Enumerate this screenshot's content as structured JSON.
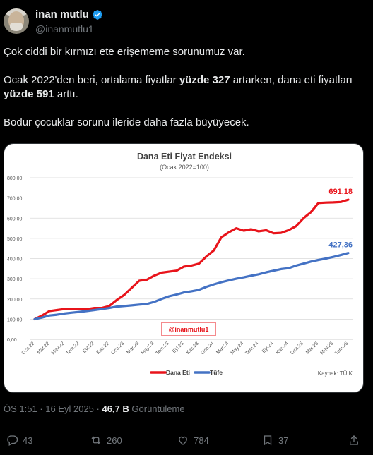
{
  "header": {
    "display_name": "inan mutlu",
    "handle": "@inanmutlu1"
  },
  "tweet": {
    "line1": "Çok ciddi bir kırmızı ete erişememe sorunumuz var.",
    "p2_a": "Ocak 2022'den beri, ortalama fiyatlar ",
    "p2_b": "yüzde 327",
    "p2_c": " artarken, dana eti fiyatları ",
    "p2_d": "yüzde 591",
    "p2_e": " arttı.",
    "line3": "Bodur çocuklar sorunu ileride daha fazla büyüyecek."
  },
  "meta": {
    "time": "ÖS 1:51 · 16 Eyl 2025 · ",
    "views_num": "46,7 B",
    "views_label": " Görüntüleme"
  },
  "actions": {
    "replies": "43",
    "reposts": "260",
    "likes": "784",
    "bookmarks": "37"
  },
  "colors": {
    "red": "#e8141b",
    "blue": "#4472c4"
  },
  "chart_data": {
    "type": "line",
    "title": "Dana Eti Fiyat Endeksi",
    "subtitle": "(Ocak 2022=100)",
    "watermark": "@inanmutlu1",
    "source": "Kaynak: TÜİK",
    "ylim": [
      0,
      800
    ],
    "yticks": [
      "0,00",
      "100,00",
      "200,00",
      "300,00",
      "400,00",
      "500,00",
      "600,00",
      "700,00",
      "800,00"
    ],
    "xticks": [
      "Oca.22",
      "Mar.22",
      "May.22",
      "Tem.22",
      "Eyl.22",
      "Kas.22",
      "Oca.23",
      "Mar.23",
      "May.23",
      "Tem.23",
      "Eyl.23",
      "Kas.23",
      "Oca.24",
      "Mar.24",
      "May.24",
      "Tem.24",
      "Eyl.24",
      "Kas.24",
      "Oca.25",
      "Mar.25",
      "May.25",
      "Tem.25"
    ],
    "series": [
      {
        "name": "Dana Eti",
        "color": "#e8141b",
        "end_label": "691,18",
        "values": [
          100,
          118,
          140,
          145,
          150,
          151,
          150,
          149,
          155,
          155,
          165,
          195,
          220,
          255,
          290,
          295,
          315,
          330,
          335,
          340,
          360,
          365,
          375,
          410,
          440,
          505,
          530,
          550,
          538,
          545,
          535,
          540,
          525,
          527,
          540,
          560,
          600,
          630,
          675,
          677,
          678,
          680,
          691.18
        ]
      },
      {
        "name": "Tüfe",
        "color": "#4472c4",
        "end_label": "427,36",
        "values": [
          100,
          108,
          118,
          122,
          128,
          132,
          136,
          140,
          145,
          150,
          155,
          162,
          165,
          168,
          172,
          175,
          185,
          200,
          213,
          222,
          232,
          238,
          245,
          260,
          272,
          283,
          292,
          300,
          307,
          315,
          322,
          332,
          340,
          348,
          352,
          365,
          375,
          385,
          393,
          400,
          408,
          417,
          427.36
        ]
      }
    ]
  }
}
